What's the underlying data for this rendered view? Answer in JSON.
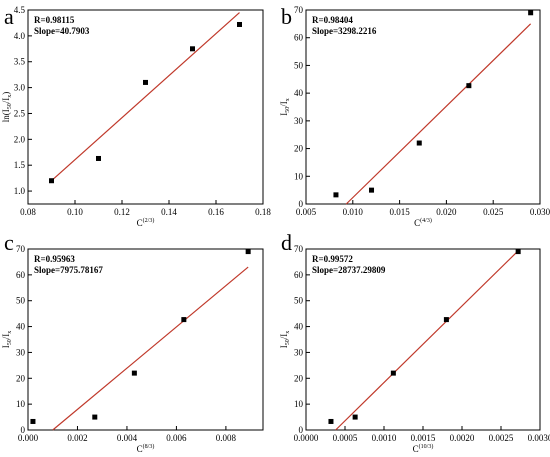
{
  "chart_data": [
    {
      "panel": "a",
      "type": "scatter",
      "annotation": [
        "R=0.98115",
        "Slope=40.7903"
      ],
      "xlabel": "C",
      "xlabel_sup": "(2/3)",
      "ylabel": [
        "ln(I",
        "50",
        "/I",
        "x",
        ")"
      ],
      "xlim": [
        0.08,
        0.18
      ],
      "ylim": [
        0.75,
        4.5
      ],
      "xticks": [
        0.08,
        0.1,
        0.12,
        0.14,
        0.16,
        0.18
      ],
      "xtick_labels": [
        "0.08",
        "0.10",
        "0.12",
        "0.14",
        "0.16",
        "0.18"
      ],
      "yticks": [
        1.0,
        1.5,
        2.0,
        2.5,
        3.0,
        3.5,
        4.0,
        4.5
      ],
      "ytick_labels": [
        "1.0",
        "1.5",
        "2.0",
        "2.5",
        "3.0",
        "3.5",
        "4.0",
        "4.5"
      ],
      "points": [
        [
          0.09,
          1.2
        ],
        [
          0.11,
          1.63
        ],
        [
          0.13,
          3.1
        ],
        [
          0.15,
          3.75
        ],
        [
          0.17,
          4.22
        ]
      ],
      "fit_line": [
        [
          0.09,
          1.2
        ],
        [
          0.17,
          4.45
        ]
      ],
      "colors": {
        "points": "#000000",
        "fit": "#c0392b"
      }
    },
    {
      "panel": "b",
      "type": "scatter",
      "annotation": [
        "R=0.98404",
        "Slope=3298.2216"
      ],
      "xlabel": "C",
      "xlabel_sup": "(4/3)",
      "ylabel": [
        "I",
        "50",
        "/I",
        "x",
        ""
      ],
      "xlim": [
        0.005,
        0.03
      ],
      "ylim": [
        0,
        70
      ],
      "xticks": [
        0.005,
        0.01,
        0.015,
        0.02,
        0.025,
        0.03
      ],
      "xtick_labels": [
        "0.005",
        "0.010",
        "0.015",
        "0.020",
        "0.025",
        "0.030"
      ],
      "yticks": [
        0,
        10,
        20,
        30,
        40,
        50,
        60,
        70
      ],
      "ytick_labels": [
        "0",
        "10",
        "20",
        "30",
        "40",
        "50",
        "60",
        "70"
      ],
      "points": [
        [
          0.0082,
          3.3
        ],
        [
          0.012,
          5.0
        ],
        [
          0.0171,
          22.0
        ],
        [
          0.0224,
          42.7
        ],
        [
          0.029,
          69.0
        ]
      ],
      "fit_line": [
        [
          0.0093,
          0
        ],
        [
          0.029,
          65.0
        ]
      ],
      "colors": {
        "points": "#000000",
        "fit": "#c0392b"
      }
    },
    {
      "panel": "c",
      "type": "scatter",
      "annotation": [
        "R=0.95963",
        "Slope=7975.78167"
      ],
      "xlabel": "C",
      "xlabel_sup": "(8/3)",
      "ylabel": [
        "I",
        "50",
        "/I",
        "x",
        ""
      ],
      "xlim": [
        0,
        0.0095
      ],
      "ylim": [
        0,
        70
      ],
      "xticks": [
        0,
        0.002,
        0.004,
        0.006,
        0.008
      ],
      "xtick_labels": [
        "0.000",
        "0.002",
        "0.004",
        "0.006",
        "0.008"
      ],
      "yticks": [
        0,
        10,
        20,
        30,
        40,
        50,
        60,
        70
      ],
      "ytick_labels": [
        "0",
        "10",
        "20",
        "30",
        "40",
        "50",
        "60",
        "70"
      ],
      "points": [
        [
          0.0002,
          3.3
        ],
        [
          0.0027,
          5.0
        ],
        [
          0.0043,
          22.0
        ],
        [
          0.0063,
          42.7
        ],
        [
          0.0089,
          69.0
        ]
      ],
      "fit_line": [
        [
          0.001,
          0
        ],
        [
          0.0089,
          63.0
        ]
      ],
      "colors": {
        "points": "#000000",
        "fit": "#c0392b"
      }
    },
    {
      "panel": "d",
      "type": "scatter",
      "annotation": [
        "R=0.99572",
        "Slope=28737.29809"
      ],
      "xlabel": "C",
      "xlabel_sup": "(10/3)",
      "ylabel": [
        "I",
        "50",
        "/I",
        "x",
        ""
      ],
      "xlim": [
        0,
        0.003
      ],
      "ylim": [
        0,
        70
      ],
      "xticks": [
        0,
        0.0005,
        0.001,
        0.0015,
        0.002,
        0.0025,
        0.003
      ],
      "xtick_labels": [
        "0.0000",
        "0.0005",
        "0.0010",
        "0.0015",
        "0.0020",
        "0.0025",
        "0.0030"
      ],
      "yticks": [
        0,
        10,
        20,
        30,
        40,
        50,
        60,
        70
      ],
      "ytick_labels": [
        "0",
        "10",
        "20",
        "30",
        "40",
        "50",
        "60",
        "70"
      ],
      "points": [
        [
          0.00032,
          3.3
        ],
        [
          0.00063,
          5.0
        ],
        [
          0.00112,
          22.0
        ],
        [
          0.0018,
          42.7
        ],
        [
          0.00272,
          69.0
        ]
      ],
      "fit_line": [
        [
          0.00038,
          0
        ],
        [
          0.00272,
          69.3
        ]
      ],
      "colors": {
        "points": "#000000",
        "fit": "#c0392b"
      }
    }
  ]
}
